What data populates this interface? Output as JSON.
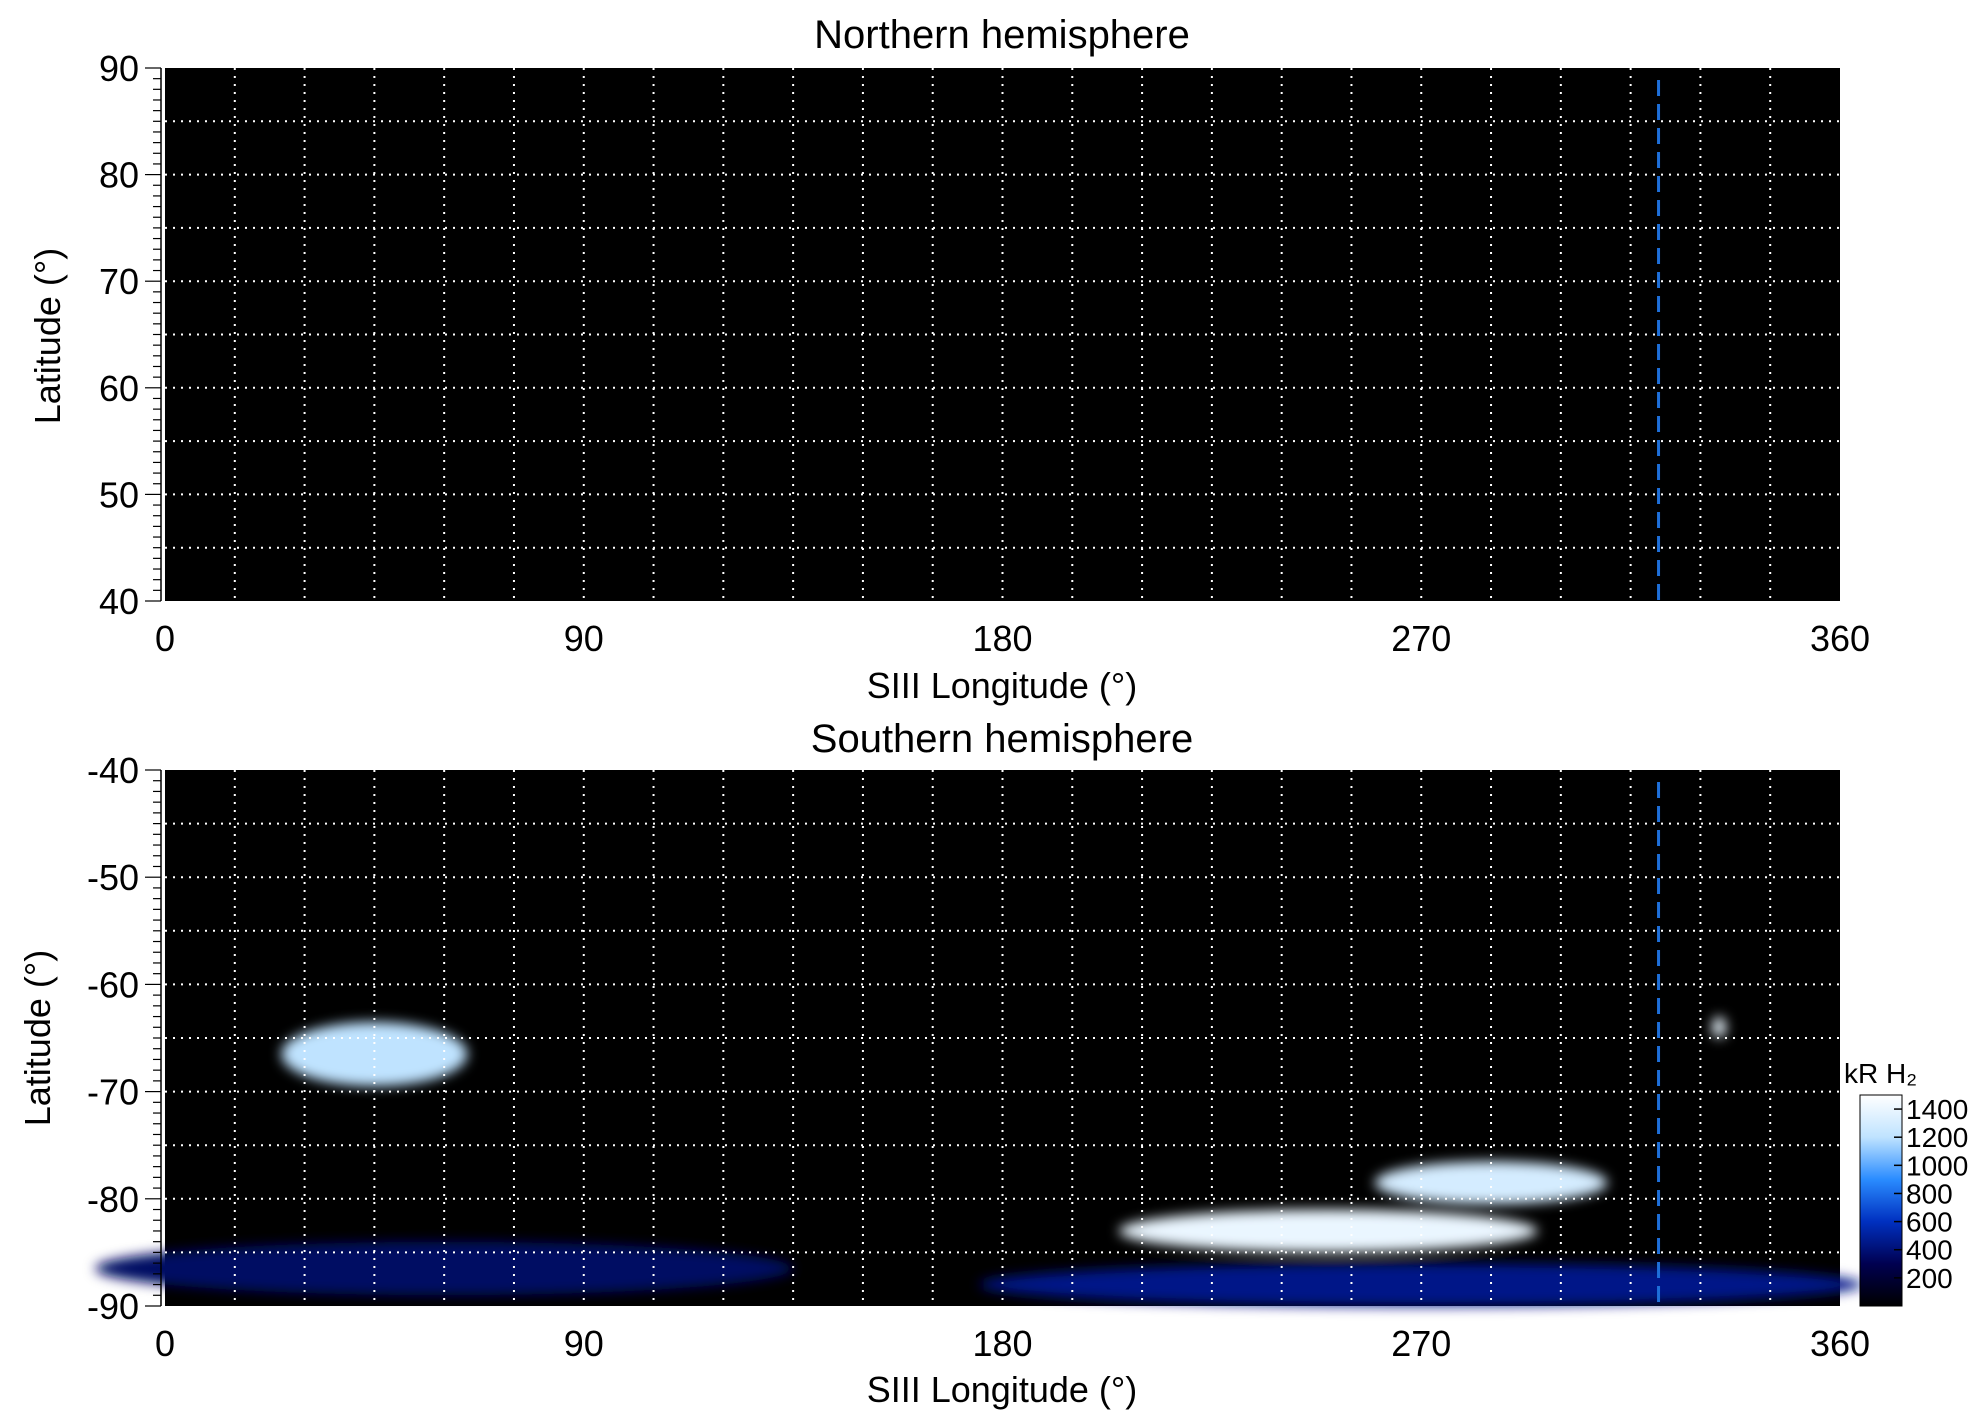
{
  "chart_data": [
    {
      "type": "heatmap",
      "title": "Northern hemisphere",
      "xlabel": "SIII Longitude (°)",
      "ylabel": "Latitude (°)",
      "xlim": [
        0,
        360
      ],
      "ylim": [
        40,
        90
      ],
      "x_ticks": [
        0,
        90,
        180,
        270,
        360
      ],
      "y_ticks": [
        40,
        50,
        60,
        70,
        80,
        90
      ],
      "grid": true,
      "grid_x_step": 15,
      "grid_y_step": 5,
      "background_color": "#000000",
      "grid_color": "#ffffff",
      "reference_line": {
        "x": 321,
        "style": "dashed",
        "color": "#1e6fd9"
      },
      "emission_regions": []
    },
    {
      "type": "heatmap",
      "title": "Southern hemisphere",
      "xlabel": "SIII Longitude (°)",
      "ylabel": "Latitude (°)",
      "xlim": [
        0,
        360
      ],
      "ylim": [
        -90,
        -40
      ],
      "x_ticks": [
        0,
        90,
        180,
        270,
        360
      ],
      "y_ticks": [
        -40,
        -50,
        -60,
        -70,
        -80,
        -90
      ],
      "grid": true,
      "grid_x_step": 15,
      "grid_y_step": 5,
      "background_color": "#000000",
      "grid_color": "#ffffff",
      "reference_line": {
        "x": 321,
        "style": "dashed",
        "color": "#1e6fd9"
      },
      "emission_regions": [
        {
          "lon_center": 45,
          "lat_center": -66.5,
          "lon_halfwidth": 20,
          "lat_halfwidth": 3,
          "intensity": 1200
        },
        {
          "lon_center": 60,
          "lat_center": -86.5,
          "lon_halfwidth": 75,
          "lat_halfwidth": 2.5,
          "intensity": 350
        },
        {
          "lon_center": 250,
          "lat_center": -83,
          "lon_halfwidth": 45,
          "lat_halfwidth": 2,
          "intensity": 1400
        },
        {
          "lon_center": 285,
          "lat_center": -78.5,
          "lon_halfwidth": 25,
          "lat_halfwidth": 2,
          "intensity": 1300
        },
        {
          "lon_center": 270,
          "lat_center": -88,
          "lon_halfwidth": 95,
          "lat_halfwidth": 2,
          "intensity": 450
        },
        {
          "lon_center": 334,
          "lat_center": -64,
          "lon_halfwidth": 1.5,
          "lat_halfwidth": 1,
          "intensity": 1400
        }
      ],
      "colorbar": {
        "label": "kR H₂",
        "ticks": [
          200,
          400,
          600,
          800,
          1000,
          1200,
          1400
        ],
        "range": [
          0,
          1500
        ],
        "colors": [
          "#000000",
          "#000050",
          "#0030c0",
          "#2a8cff",
          "#bfe3ff",
          "#ffffff"
        ]
      }
    }
  ]
}
